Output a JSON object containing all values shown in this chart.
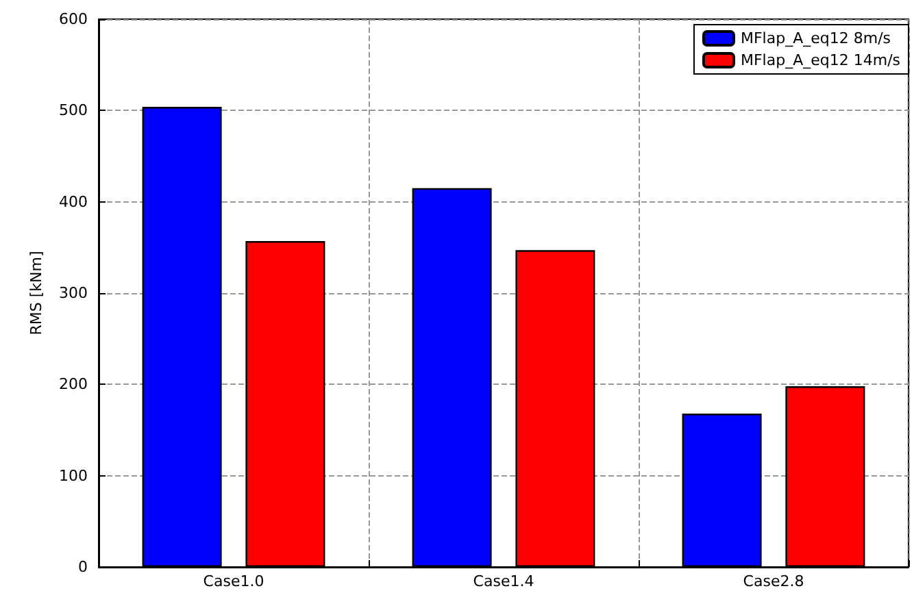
{
  "chart_data": {
    "type": "bar",
    "ylabel": "RMS [kNm]",
    "categories": [
      "Case1.0",
      "Case1.4",
      "Case2.8"
    ],
    "series": [
      {
        "name": "MFlap_A_eq12 8m/s",
        "color": "#0000ff",
        "values": [
          504,
          415,
          168
        ]
      },
      {
        "name": "MFlap_A_eq12 14m/s",
        "color": "#ff0000",
        "values": [
          357,
          347,
          198
        ]
      }
    ],
    "ylim": [
      0,
      600
    ],
    "yticks": [
      0,
      100,
      200,
      300,
      400,
      500,
      600
    ],
    "grid": true,
    "legend": "top right"
  }
}
